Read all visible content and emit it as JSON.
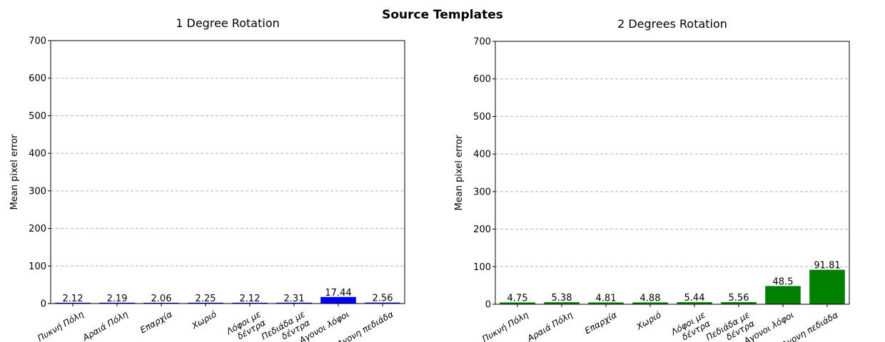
{
  "suptitle": "Source Templates",
  "chart_data": [
    {
      "type": "bar",
      "title": "1 Degree Rotation",
      "xlabel": "",
      "ylabel": "Mean pixel error",
      "ylim": [
        0,
        700
      ],
      "yticks": [
        0,
        100,
        200,
        300,
        400,
        500,
        600,
        700
      ],
      "grid": "y-dashed",
      "color": "#0000ff",
      "categories": [
        "Πυκνή Πόλη",
        "Αραιά Πόλη",
        "Επαρχία",
        "Χωριό",
        "Λόφοι με δέντρα",
        "Πεδιάδα με δέντρα",
        "Αγονοι λόφοι",
        "Αγονη πεδιάδα"
      ],
      "category_lines": [
        [
          "Πυκνή Πόλη"
        ],
        [
          "Αραιά Πόλη"
        ],
        [
          "Επαρχία"
        ],
        [
          "Χωριό"
        ],
        [
          "Λόφοι με",
          "δέντρα"
        ],
        [
          "Πεδιάδα με",
          "δέντρα"
        ],
        [
          "Αγονοι λόφοι"
        ],
        [
          "Αγονη πεδιάδα"
        ]
      ],
      "values": [
        2.12,
        2.19,
        2.06,
        2.25,
        2.12,
        2.31,
        17.44,
        2.56
      ],
      "value_labels": [
        "2.12",
        "2.19",
        "2.06",
        "2.25",
        "2.12",
        "2.31",
        "17.44",
        "2.56"
      ]
    },
    {
      "type": "bar",
      "title": "2 Degrees Rotation",
      "xlabel": "",
      "ylabel": "Mean pixel error",
      "ylim": [
        0,
        700
      ],
      "yticks": [
        0,
        100,
        200,
        300,
        400,
        500,
        600,
        700
      ],
      "grid": "y-dashed",
      "color": "#008000",
      "categories": [
        "Πυκνή Πόλη",
        "Αραιά Πόλη",
        "Επαρχία",
        "Χωριό",
        "Λόφοι με δέντρα",
        "Πεδιάδα με δέντρα",
        "Αγονοι λόφοι",
        "Αγονη πεδιάδα"
      ],
      "category_lines": [
        [
          "Πυκνή Πόλη"
        ],
        [
          "Αραιά Πόλη"
        ],
        [
          "Επαρχία"
        ],
        [
          "Χωριό"
        ],
        [
          "Λόφοι με",
          "δέντρα"
        ],
        [
          "Πεδιάδα με",
          "δέντρα"
        ],
        [
          "Αγονοι λόφοι"
        ],
        [
          "Αγονη πεδιάδα"
        ]
      ],
      "values": [
        4.75,
        5.38,
        4.81,
        4.88,
        5.44,
        5.56,
        48.5,
        91.81
      ],
      "value_labels": [
        "4.75",
        "5.38",
        "4.81",
        "4.88",
        "5.44",
        "5.56",
        "48.5",
        "91.81"
      ]
    }
  ]
}
